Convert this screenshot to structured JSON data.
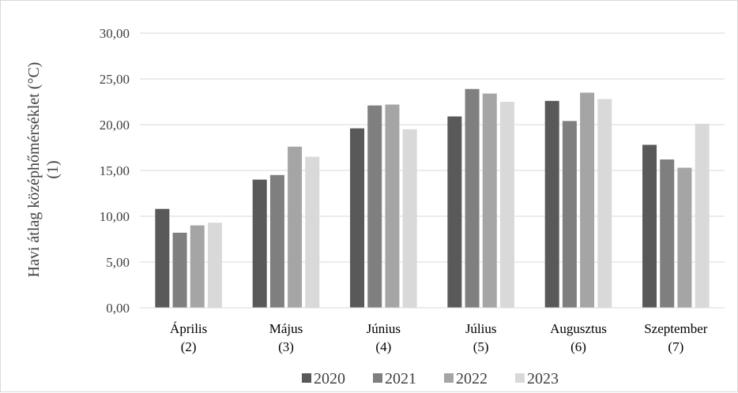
{
  "chart_data": {
    "type": "bar",
    "ylabel_line1": "Havi átlag középhőmérséklet (°C)",
    "ylabel_line2": "(1)",
    "categories": [
      [
        "Április",
        "(2)"
      ],
      [
        "Május",
        "(3)"
      ],
      [
        "Június",
        "(4)"
      ],
      [
        "Július",
        "(5)"
      ],
      [
        "Augusztus",
        "(6)"
      ],
      [
        "Szeptember",
        "(7)"
      ]
    ],
    "yticks": [
      "0,00",
      "5,00",
      "10,00",
      "15,00",
      "20,00",
      "25,00",
      "30,00"
    ],
    "ylim": [
      0,
      30
    ],
    "grid": true,
    "legend_position": "bottom",
    "series": [
      {
        "name": "2020",
        "color": "#595959",
        "values": [
          10.8,
          14.0,
          19.6,
          20.9,
          22.6,
          17.8
        ]
      },
      {
        "name": "2021",
        "color": "#7f7f7f",
        "values": [
          8.2,
          14.5,
          22.1,
          23.9,
          20.4,
          16.2
        ]
      },
      {
        "name": "2022",
        "color": "#a5a5a5",
        "values": [
          9.0,
          17.6,
          22.2,
          23.4,
          23.5,
          15.3
        ]
      },
      {
        "name": "2023",
        "color": "#d9d9d9",
        "values": [
          9.3,
          16.5,
          19.5,
          22.5,
          22.8,
          20.1
        ]
      }
    ]
  }
}
